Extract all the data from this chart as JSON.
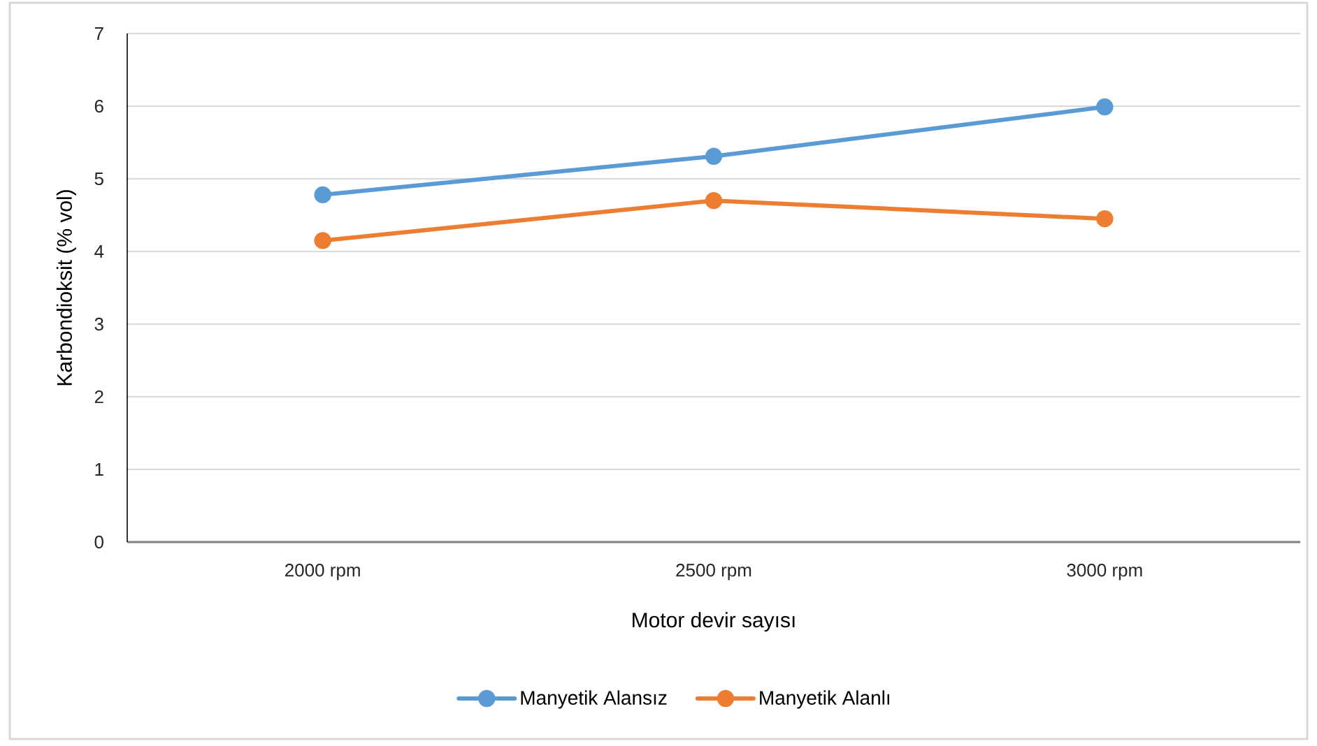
{
  "chart_data": {
    "type": "line",
    "xlabel": "Motor devir sayısı",
    "ylabel": "Karbondioksit (% vol)",
    "categories": [
      "2000 rpm",
      "2500 rpm",
      "3000 rpm"
    ],
    "series": [
      {
        "name": "Manyetik Alansız",
        "color": "#5b9bd5",
        "values": [
          4.78,
          5.31,
          5.99
        ]
      },
      {
        "name": "Manyetik Alanlı",
        "color": "#ed7d31",
        "values": [
          4.15,
          4.7,
          4.45
        ]
      }
    ],
    "ylim": [
      0,
      7
    ],
    "yticks": [
      0,
      1,
      2,
      3,
      4,
      5,
      6,
      7
    ],
    "grid": "y",
    "legend": "bottom",
    "marker": "circle",
    "line_style": "solid"
  }
}
